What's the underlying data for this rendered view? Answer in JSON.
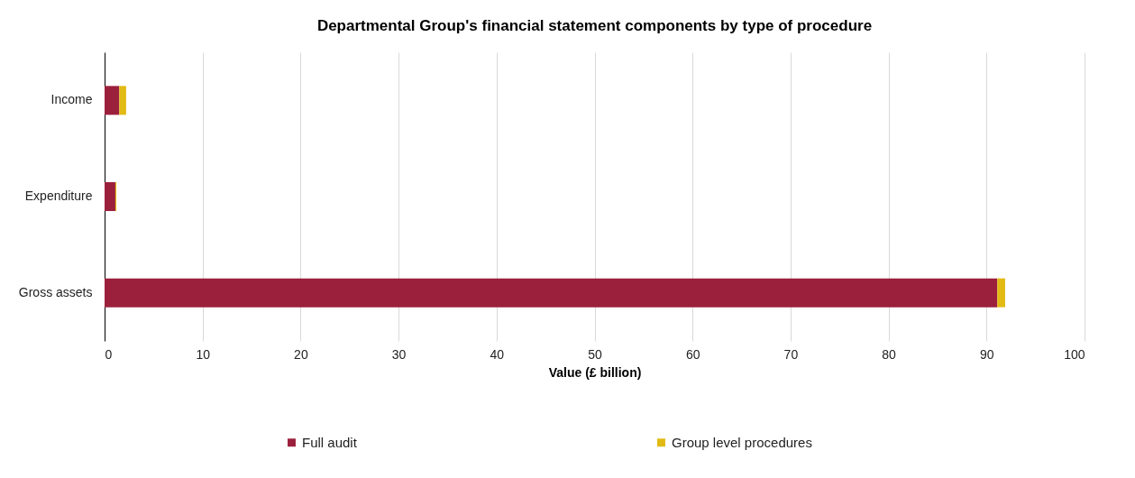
{
  "chart_data": {
    "type": "bar",
    "orientation": "horizontal",
    "stacked": true,
    "title": "Departmental Group's financial statement components by type of procedure",
    "xlabel": "Value (£ billion)",
    "categories": [
      "Income",
      "Expenditure",
      "Gross assets"
    ],
    "series": [
      {
        "name": "Full audit",
        "color": "#9b203c",
        "values": [
          1.5,
          1.1,
          91.1
        ]
      },
      {
        "name": "Group level procedures",
        "color": "#e2ba14",
        "values": [
          0.7,
          0.1,
          0.8
        ]
      }
    ],
    "xlim": [
      0,
      100
    ],
    "xticks": [
      0,
      10,
      20,
      30,
      40,
      50,
      60,
      70,
      80,
      90,
      100
    ],
    "grid": "x",
    "legend": "bottom"
  }
}
